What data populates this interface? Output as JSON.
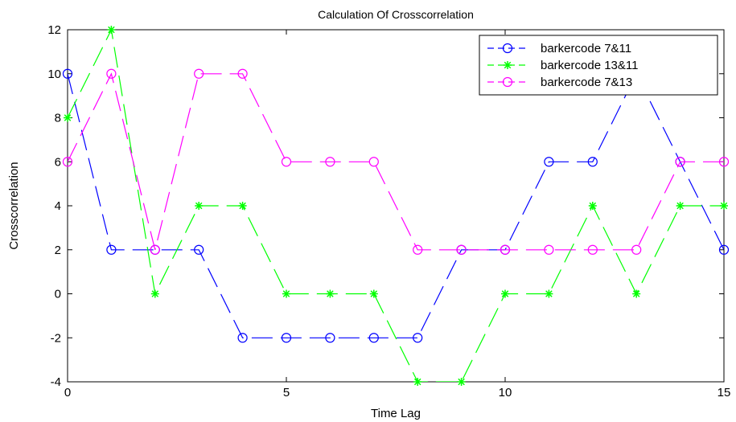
{
  "chart_data": {
    "type": "line",
    "title": "Calculation Of Crosscorrelation",
    "xlabel": "Time Lag",
    "ylabel": "Crosscorrelation",
    "xlim": [
      0,
      15
    ],
    "ylim": [
      -4,
      12
    ],
    "xticks": [
      0,
      5,
      10,
      15
    ],
    "yticks": [
      -4,
      -2,
      0,
      2,
      4,
      6,
      8,
      10,
      12
    ],
    "grid": false,
    "legend_position": "top-right",
    "x": [
      0,
      1,
      2,
      3,
      4,
      5,
      6,
      7,
      8,
      9,
      10,
      11,
      12,
      13,
      14,
      15
    ],
    "series": [
      {
        "name": "barkercode 7&11",
        "color": "#0000ff",
        "marker": "circle",
        "line_style": "dashed",
        "values": [
          10,
          2,
          2,
          2,
          -2,
          -2,
          -2,
          -2,
          -2,
          2,
          2,
          6,
          6,
          10,
          6,
          2
        ]
      },
      {
        "name": "barkercode 13&11",
        "color": "#00ff00",
        "marker": "star",
        "line_style": "dashed",
        "values": [
          8,
          12,
          0,
          4,
          4,
          0,
          0,
          0,
          -4,
          -4,
          0,
          0,
          4,
          0,
          4,
          4
        ]
      },
      {
        "name": "barkercode 7&13",
        "color": "#ff00ff",
        "marker": "circle",
        "line_style": "dashed",
        "values": [
          6,
          10,
          2,
          10,
          10,
          6,
          6,
          6,
          2,
          2,
          2,
          2,
          2,
          2,
          6,
          6
        ]
      }
    ]
  }
}
